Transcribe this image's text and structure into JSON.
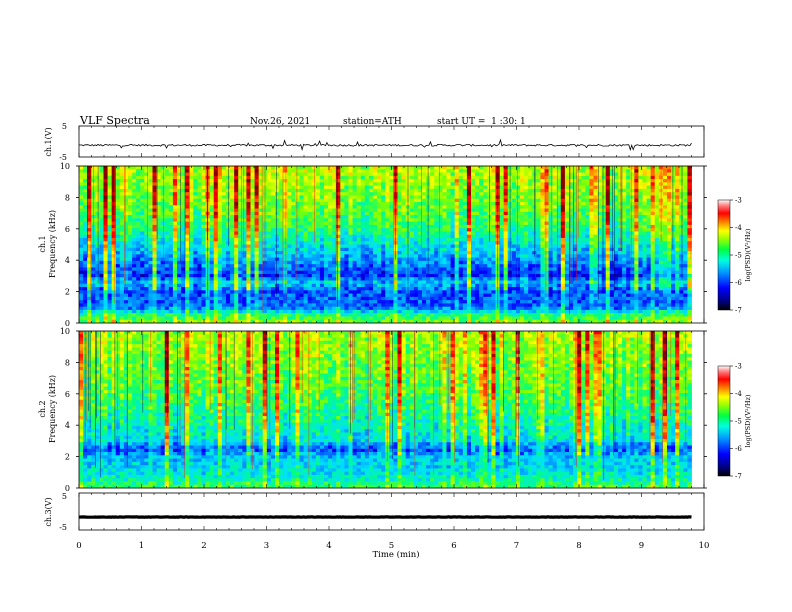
{
  "header": {
    "title": "VLF Spectra",
    "date": "Nov.26, 2021",
    "station": "station=ATH",
    "start_ut": "start UT =  1 :30: 1"
  },
  "colors": {
    "colormap": [
      "#000080",
      "#0000ff",
      "#0080ff",
      "#00e0ff",
      "#00ff80",
      "#80ff00",
      "#ffff00",
      "#ff8000",
      "#ff0000",
      "#800000",
      "#ffffff"
    ],
    "waveform": "#000000"
  },
  "chart_data": [
    {
      "type": "line",
      "name": "ch1-waveform",
      "ylabel": "ch.1(V)",
      "ylim": [
        -5,
        5
      ],
      "y_ticks": [
        "5",
        "-5"
      ],
      "xlim": [
        0,
        10
      ],
      "baseline": -1.2,
      "noise_amplitude": 0.6
    },
    {
      "type": "heatmap",
      "name": "ch1-spectrogram",
      "ylabel": "ch.1\nFrequency (kHz)",
      "ylim": [
        0,
        10
      ],
      "y_ticks": [
        "0",
        "2",
        "4",
        "6",
        "8",
        "10"
      ],
      "xlim": [
        0,
        9.8
      ],
      "colorbar": {
        "label": "log(PSD)(V²/Hz)",
        "range": [
          -7,
          -3
        ],
        "ticks": [
          "-3",
          "-4",
          "-5",
          "-6",
          "-7"
        ]
      },
      "frequency_profile_kHz": [
        {
          "f": 0.0,
          "level": 0.55
        },
        {
          "f": 0.5,
          "level": 0.45
        },
        {
          "f": 1.0,
          "level": 0.2
        },
        {
          "f": 2.0,
          "level": 0.18
        },
        {
          "f": 2.6,
          "level": 0.3
        },
        {
          "f": 3.0,
          "level": 0.15
        },
        {
          "f": 4.0,
          "level": 0.25
        },
        {
          "f": 5.0,
          "level": 0.35
        },
        {
          "f": 6.0,
          "level": 0.45
        },
        {
          "f": 8.0,
          "level": 0.55
        },
        {
          "f": 10.0,
          "level": 0.6
        }
      ]
    },
    {
      "type": "heatmap",
      "name": "ch2-spectrogram",
      "ylabel": "ch.2\nFrequency (kHz)",
      "ylim": [
        0,
        10
      ],
      "y_ticks": [
        "0",
        "2",
        "4",
        "6",
        "8",
        "10"
      ],
      "xlim": [
        0,
        9.8
      ],
      "colorbar": {
        "label": "log(PSD)(V²/Hz)",
        "range": [
          -7,
          -3
        ],
        "ticks": [
          "-3",
          "-4",
          "-5",
          "-6",
          "-7"
        ]
      },
      "frequency_profile_kHz": [
        {
          "f": 0.0,
          "level": 0.5
        },
        {
          "f": 0.5,
          "level": 0.4
        },
        {
          "f": 1.0,
          "level": 0.35
        },
        {
          "f": 2.0,
          "level": 0.3
        },
        {
          "f": 2.5,
          "level": 0.18
        },
        {
          "f": 3.0,
          "level": 0.35
        },
        {
          "f": 4.0,
          "level": 0.4
        },
        {
          "f": 5.0,
          "level": 0.45
        },
        {
          "f": 6.0,
          "level": 0.5
        },
        {
          "f": 8.0,
          "level": 0.55
        },
        {
          "f": 10.0,
          "level": 0.6
        }
      ]
    },
    {
      "type": "line",
      "name": "ch3-waveform",
      "ylabel": "ch.3(V)",
      "ylim": [
        -5,
        5
      ],
      "y_ticks": [
        "5",
        "-5"
      ],
      "xlim": [
        0,
        10
      ],
      "baseline": -1.5,
      "noise_amplitude": 0.1
    }
  ],
  "x_axis": {
    "label": "Time (min)",
    "ticks": [
      "0",
      "1",
      "2",
      "3",
      "4",
      "5",
      "6",
      "7",
      "8",
      "9",
      "10"
    ],
    "range": [
      0,
      10
    ]
  }
}
